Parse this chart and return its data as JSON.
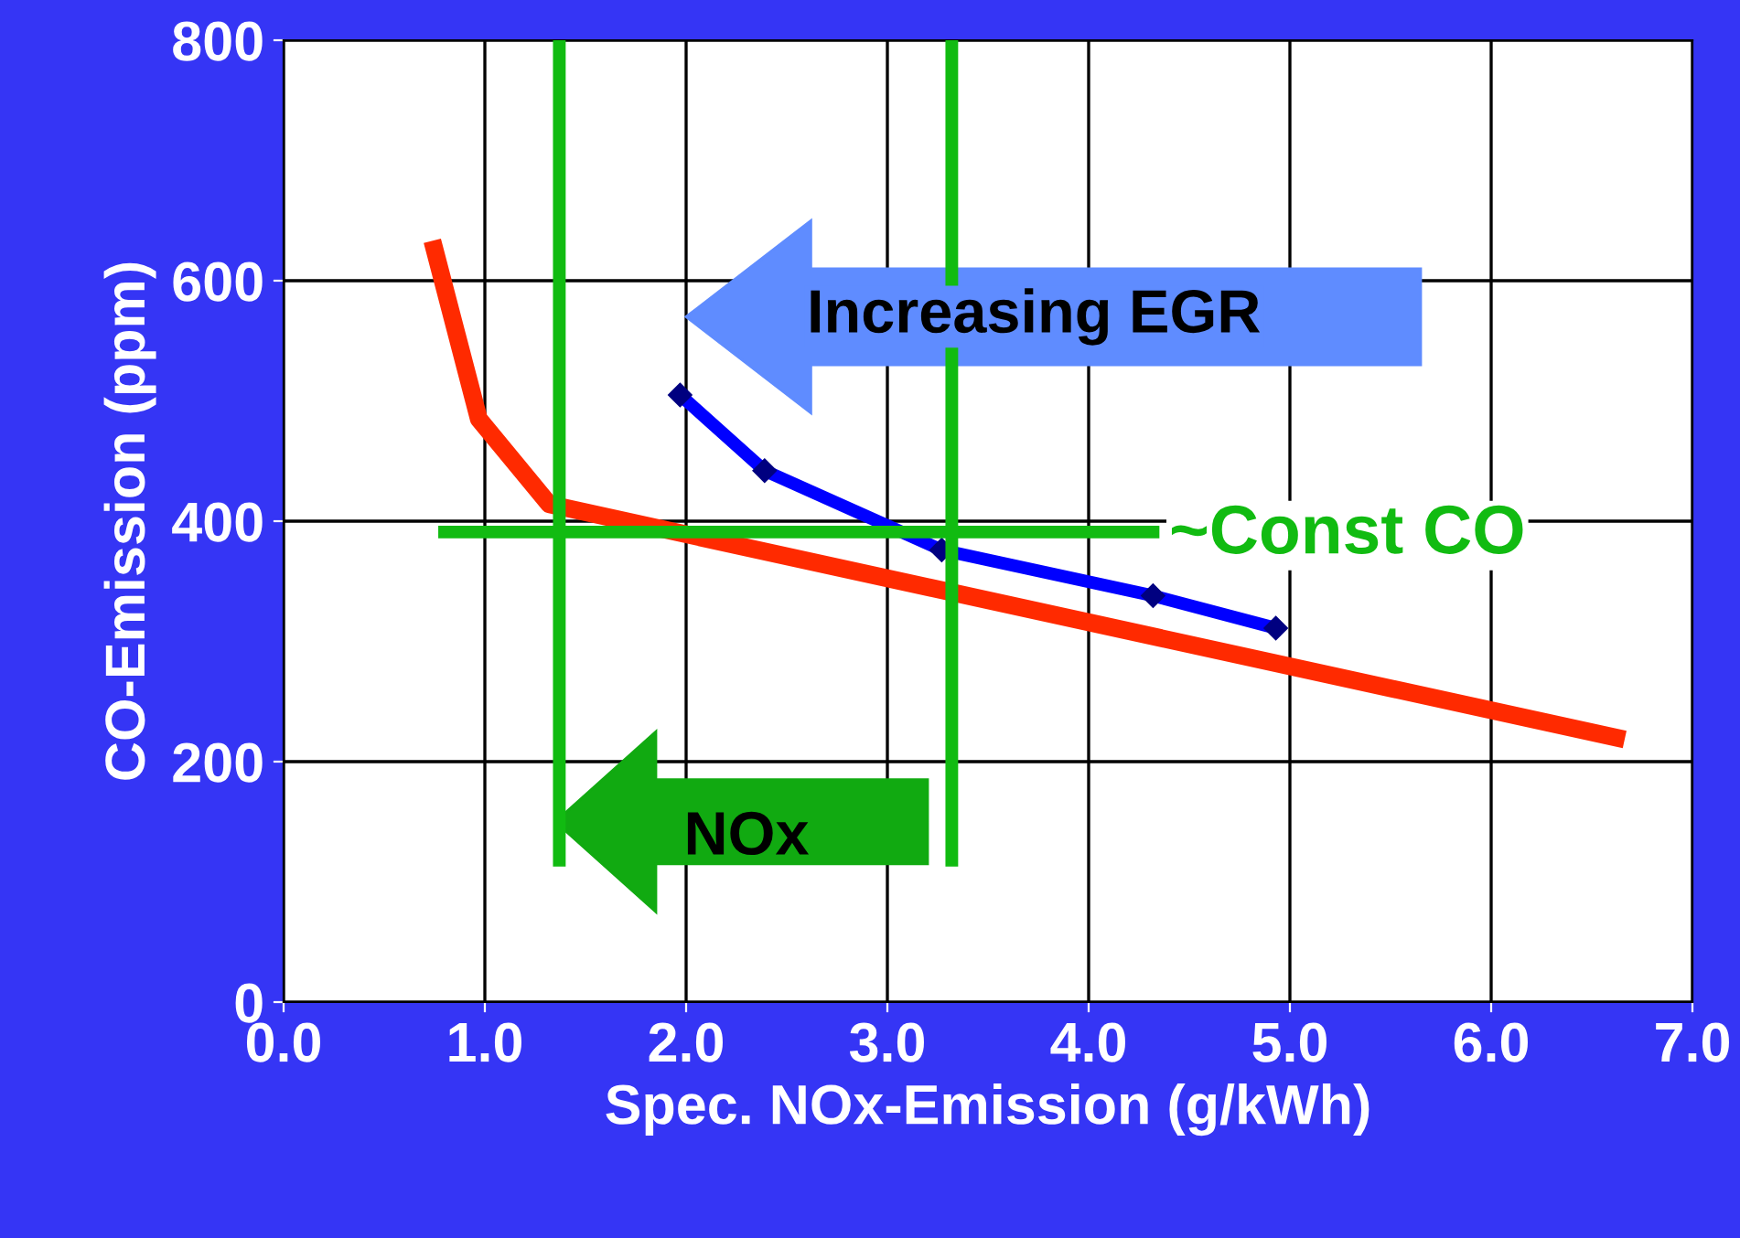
{
  "chart_data": {
    "type": "line",
    "xlabel": "Spec. NOx-Emission (g/kWh)",
    "ylabel": "CO-Emission (ppm)",
    "xlim": [
      0,
      7
    ],
    "ylim": [
      0,
      800
    ],
    "xticks": [
      {
        "value": 0,
        "label": "0.0"
      },
      {
        "value": 1,
        "label": "1.0"
      },
      {
        "value": 2,
        "label": "2.0"
      },
      {
        "value": 3,
        "label": "3.0"
      },
      {
        "value": 4,
        "label": "4.0"
      },
      {
        "value": 5,
        "label": "5.0"
      },
      {
        "value": 6,
        "label": "6.0"
      },
      {
        "value": 7,
        "label": "7.0"
      }
    ],
    "yticks": [
      0,
      200,
      400,
      600,
      800
    ],
    "grid": true,
    "legend": false,
    "series": [
      {
        "color": "#ff2a00",
        "x": [
          0.75,
          0.97,
          1.32,
          6.62
        ],
        "values": [
          626,
          485,
          414,
          220
        ]
      },
      {
        "color": "#0000ff",
        "marker": "diamond",
        "x": [
          1.97,
          2.39,
          3.27,
          4.32,
          4.93
        ],
        "values": [
          505,
          442,
          376,
          338,
          311
        ]
      },
      {
        "color": "#11bb11",
        "x": [
          1.37,
          1.37
        ],
        "values": [
          118,
          800
        ]
      },
      {
        "color": "#11bb11",
        "x": [
          3.32,
          3.32
        ],
        "values": [
          118,
          800
        ]
      },
      {
        "color": "#11bb11",
        "x": [
          0.8,
          4.32
        ],
        "values": [
          391,
          391
        ]
      }
    ],
    "annotations": [
      "Increasing EGR",
      "~Const CO",
      "NOx"
    ]
  }
}
